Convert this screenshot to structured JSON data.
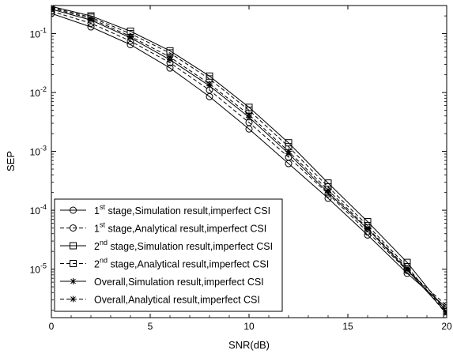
{
  "chart_data": {
    "type": "line",
    "xlabel": "SNR(dB)",
    "ylabel": "SEP",
    "xlim": [
      0,
      20
    ],
    "ylim": [
      1.5e-06,
      0.3
    ],
    "y_scale": "log",
    "grid": false,
    "legend_position": "bottom-left",
    "x_ticks": [
      0,
      5,
      10,
      15,
      20
    ],
    "x_tick_labels": [
      "0",
      "5",
      "10",
      "15",
      "20"
    ],
    "y_ticks": [
      {
        "value": 0.1,
        "base": "10",
        "exp": "-1"
      },
      {
        "value": 0.01,
        "base": "10",
        "exp": "-2"
      },
      {
        "value": 0.001,
        "base": "10",
        "exp": "-3"
      },
      {
        "value": 0.0001,
        "base": "10",
        "exp": "-4"
      },
      {
        "value": 1e-05,
        "base": "10",
        "exp": "-5"
      }
    ],
    "x": [
      0,
      2,
      4,
      6,
      8,
      10,
      12,
      14,
      16,
      18,
      20
    ],
    "series": [
      {
        "name_prefix": "1",
        "name_sup": "st",
        "name_rest": " stage,Simulation result,imperfect CSI",
        "marker": "circle",
        "dash": "solid",
        "values": [
          0.22,
          0.13,
          0.065,
          0.026,
          0.0085,
          0.0024,
          0.00062,
          0.00016,
          3.8e-05,
          8.5e-06,
          2.2e-06
        ]
      },
      {
        "name_prefix": "1",
        "name_sup": "st",
        "name_rest": " stage,Analytical result,imperfect CSI",
        "marker": "circle",
        "dash": "dashed",
        "values": [
          0.24,
          0.15,
          0.075,
          0.032,
          0.011,
          0.0031,
          0.0008,
          0.00019,
          4.3e-05,
          9.5e-06,
          2.4e-06
        ]
      },
      {
        "name_prefix": "2",
        "name_sup": "nd",
        "name_rest": " stage,Simulation result,imperfect CSI",
        "marker": "square",
        "dash": "solid",
        "values": [
          0.29,
          0.2,
          0.11,
          0.051,
          0.019,
          0.0056,
          0.0014,
          0.00029,
          6.4e-05,
          1.3e-05,
          1.9e-06
        ]
      },
      {
        "name_prefix": "2",
        "name_sup": "nd",
        "name_rest": " stage,Analytical result,imperfect CSI",
        "marker": "square",
        "dash": "dashed",
        "values": [
          0.28,
          0.19,
          0.1,
          0.047,
          0.017,
          0.005,
          0.0012,
          0.00025,
          5.5e-05,
          1.1e-05,
          1.7e-06
        ]
      },
      {
        "name_prefix": "Overall",
        "name_sup": "",
        "name_rest": ",Simulation result,imperfect CSI",
        "marker": "star",
        "dash": "solid",
        "values": [
          0.26,
          0.17,
          0.085,
          0.036,
          0.013,
          0.0038,
          0.00092,
          0.0002,
          4.8e-05,
          9.7e-06,
          1.8e-06
        ]
      },
      {
        "name_prefix": "Overall",
        "name_sup": "",
        "name_rest": ",Analytical result,imperfect CSI",
        "marker": "star",
        "dash": "dashed",
        "values": [
          0.27,
          0.18,
          0.09,
          0.04,
          0.014,
          0.0042,
          0.001,
          0.00022,
          5e-05,
          1.03e-05,
          1.9e-06
        ]
      }
    ]
  }
}
